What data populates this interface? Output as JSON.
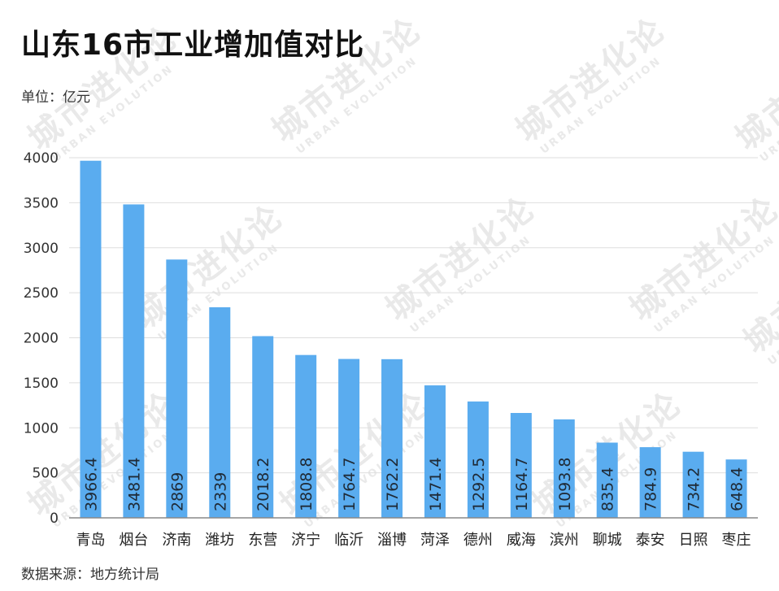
{
  "title": "山东16市工业增加值对比",
  "unit": "单位：亿元",
  "source": "数据来源：地方统计局",
  "watermark": {
    "cn": "城市进化论",
    "en": "URBAN EVOLUTION"
  },
  "colors": {
    "bar": "#5aacef",
    "grid": "#dedede",
    "axis": "#888888",
    "label": "#1f2a36"
  },
  "chart_data": {
    "type": "bar",
    "title": "山东16市工业增加值对比",
    "xlabel": "",
    "ylabel": "",
    "ylim": [
      0,
      4000
    ],
    "yticks": [
      0,
      500,
      1000,
      1500,
      2000,
      2500,
      3000,
      3500,
      4000
    ],
    "grid": true,
    "categories": [
      "青岛",
      "烟台",
      "济南",
      "潍坊",
      "东营",
      "济宁",
      "临沂",
      "淄博",
      "菏泽",
      "德州",
      "威海",
      "滨州",
      "聊城",
      "泰安",
      "日照",
      "枣庄"
    ],
    "values": [
      3966.4,
      3481.4,
      2869,
      2339,
      2018.2,
      1808.8,
      1764.7,
      1762.2,
      1471.4,
      1292.5,
      1164.7,
      1093.8,
      835.4,
      784.9,
      734.2,
      648.4
    ],
    "value_labels": [
      "3966.4",
      "3481.4",
      "2869",
      "2339",
      "2018.2",
      "1808.8",
      "1764.7",
      "1762.2",
      "1471.4",
      "1292.5",
      "1164.7",
      "1093.8",
      "835.4",
      "784.9",
      "734.2",
      "648.4"
    ]
  }
}
